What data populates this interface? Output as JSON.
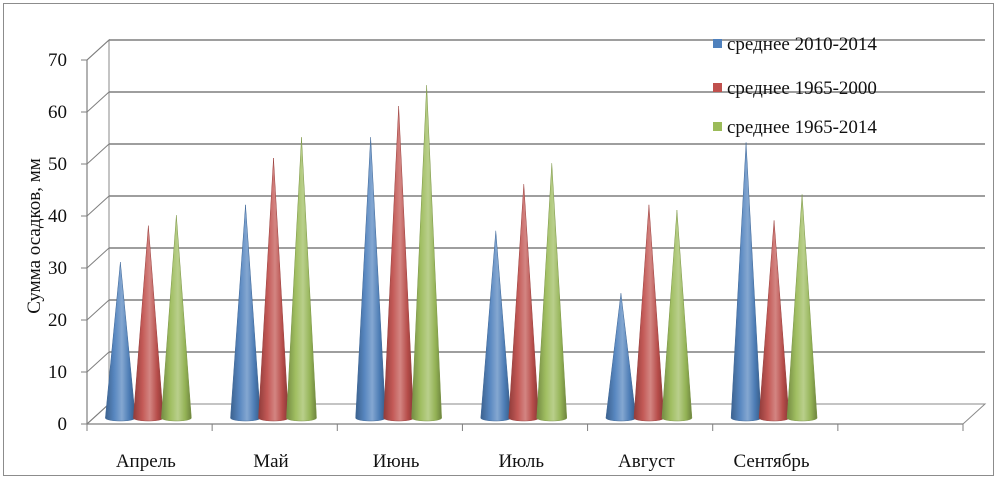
{
  "chart_data": {
    "type": "bar",
    "bar_shape": "cone",
    "three_d": true,
    "ylabel": "Сумма осадков, мм",
    "ylim": [
      0,
      70
    ],
    "yticks": [
      0,
      10,
      20,
      30,
      40,
      50,
      60,
      70
    ],
    "grid": true,
    "legend_position": "top-right",
    "categories": [
      "Апрель",
      "Май",
      "Июнь",
      "Июль",
      "Август",
      "Сентябрь"
    ],
    "series": [
      {
        "name": "среднее 2010-2014",
        "color": "#4F81BD",
        "values": [
          30,
          41,
          54,
          36,
          24,
          53
        ]
      },
      {
        "name": "среднее  1965-2000",
        "color": "#C0504D",
        "values": [
          37,
          50,
          60,
          45,
          41,
          38
        ]
      },
      {
        "name": "среднее  1965-2014",
        "color": "#9BBB59",
        "values": [
          39,
          54,
          64,
          49,
          40,
          43
        ]
      }
    ]
  }
}
